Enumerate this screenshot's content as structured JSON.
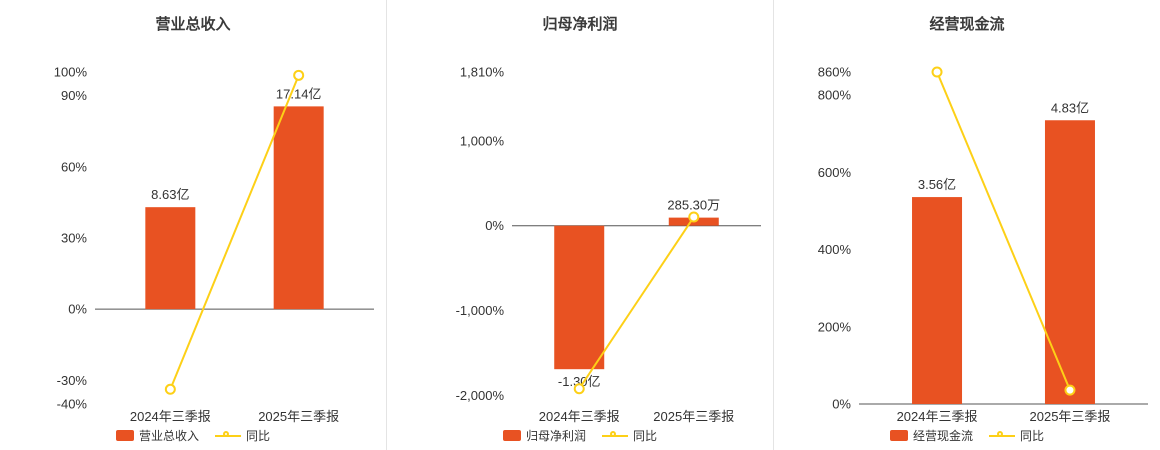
{
  "colors": {
    "bar": "#e85222",
    "line": "#fdd017",
    "marker_fill": "#ffffff",
    "zero_axis": "#555555",
    "text": "#333333",
    "divider": "#e4e4e4",
    "background": "#ffffff"
  },
  "chart_data": [
    {
      "type": "bar+line",
      "title": "营业总收入",
      "categories": [
        "2024年三季报",
        "2025年三季报"
      ],
      "ylim": [
        -40,
        100
      ],
      "y_ticks": [
        {
          "value": 100,
          "label": "100%"
        },
        {
          "value": 90,
          "label": "90%"
        },
        {
          "value": 60,
          "label": "60%"
        },
        {
          "value": 30,
          "label": "30%"
        },
        {
          "value": 0,
          "label": "0%"
        },
        {
          "value": -30,
          "label": "-30%"
        },
        {
          "value": -40,
          "label": "-40%"
        }
      ],
      "bars": {
        "name": "营业总收入",
        "labels": [
          "8.63亿",
          "17.14亿"
        ],
        "plot_values": [
          43,
          85.5
        ]
      },
      "line": {
        "name": "同比",
        "values": [
          -33.8,
          98.6
        ]
      },
      "legend_position": "bottom"
    },
    {
      "type": "bar+line",
      "title": "归母净利润",
      "categories": [
        "2024年三季报",
        "2025年三季报"
      ],
      "ylim": [
        -2100,
        1810
      ],
      "y_ticks": [
        {
          "value": 1810,
          "label": "1,810%"
        },
        {
          "value": 1000,
          "label": "1,000%"
        },
        {
          "value": 0,
          "label": "0%"
        },
        {
          "value": -1000,
          "label": "-1,000%"
        },
        {
          "value": -2000,
          "label": "-2,000%"
        }
      ],
      "bars": {
        "name": "归母净利润",
        "labels": [
          "-1.30亿",
          "285.30万"
        ],
        "plot_values": [
          -1690,
          95
        ]
      },
      "line": {
        "name": "同比",
        "values": [
          -1920,
          102
        ]
      },
      "legend_position": "bottom"
    },
    {
      "type": "bar+line",
      "title": "经营现金流",
      "categories": [
        "2024年三季报",
        "2025年三季报"
      ],
      "ylim": [
        0,
        860
      ],
      "y_ticks": [
        {
          "value": 860,
          "label": "860%"
        },
        {
          "value": 800,
          "label": "800%"
        },
        {
          "value": 600,
          "label": "600%"
        },
        {
          "value": 400,
          "label": "400%"
        },
        {
          "value": 200,
          "label": "200%"
        },
        {
          "value": 0,
          "label": "0%"
        }
      ],
      "bars": {
        "name": "经营现金流",
        "labels": [
          "3.56亿",
          "4.83亿"
        ],
        "plot_values": [
          536,
          735
        ]
      },
      "line": {
        "name": "同比",
        "values": [
          860,
          36
        ]
      },
      "legend_position": "bottom"
    }
  ]
}
